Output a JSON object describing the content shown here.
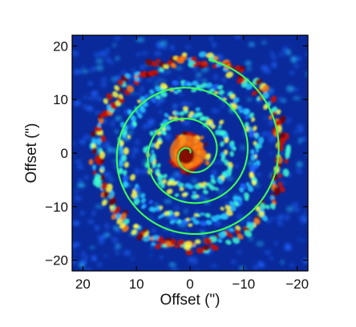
{
  "chart_data": {
    "type": "heatmap",
    "title": "",
    "xlabel": "Offset (\")",
    "ylabel": "Offset (\")",
    "xlim": [
      22,
      -22
    ],
    "ylim": [
      -22,
      22
    ],
    "x_ticks": [
      20,
      10,
      0,
      -10,
      -20
    ],
    "x_tick_labels": [
      "20",
      "10",
      "0",
      "−10",
      "−20"
    ],
    "y_ticks": [
      20,
      10,
      0,
      -10,
      -20
    ],
    "y_tick_labels": [
      "20",
      "10",
      "0",
      "−10",
      "−20"
    ],
    "colormap": [
      "#08208e",
      "#1f66ff",
      "#26c8ff",
      "#3dffd0",
      "#ffff40",
      "#ff7a10",
      "#cc1000",
      "#7a0000"
    ],
    "background_color": "#0a2a9c",
    "overlay_spiral": {
      "color": "#3dff55",
      "description_type": "archimedean",
      "turn_spacing_arcsec": 5.8,
      "outer_radius_arcsec": 17.8
    },
    "emission_arms": [
      {
        "radius_range": [
          1.5,
          3.5
        ],
        "peak": "red"
      },
      {
        "radius_range": [
          6,
          8
        ],
        "peak": "cyan"
      },
      {
        "radius_range": [
          12,
          13
        ],
        "peak": "cyan"
      },
      {
        "radius_range": [
          16.5,
          18.5
        ],
        "peak": "red"
      }
    ]
  }
}
